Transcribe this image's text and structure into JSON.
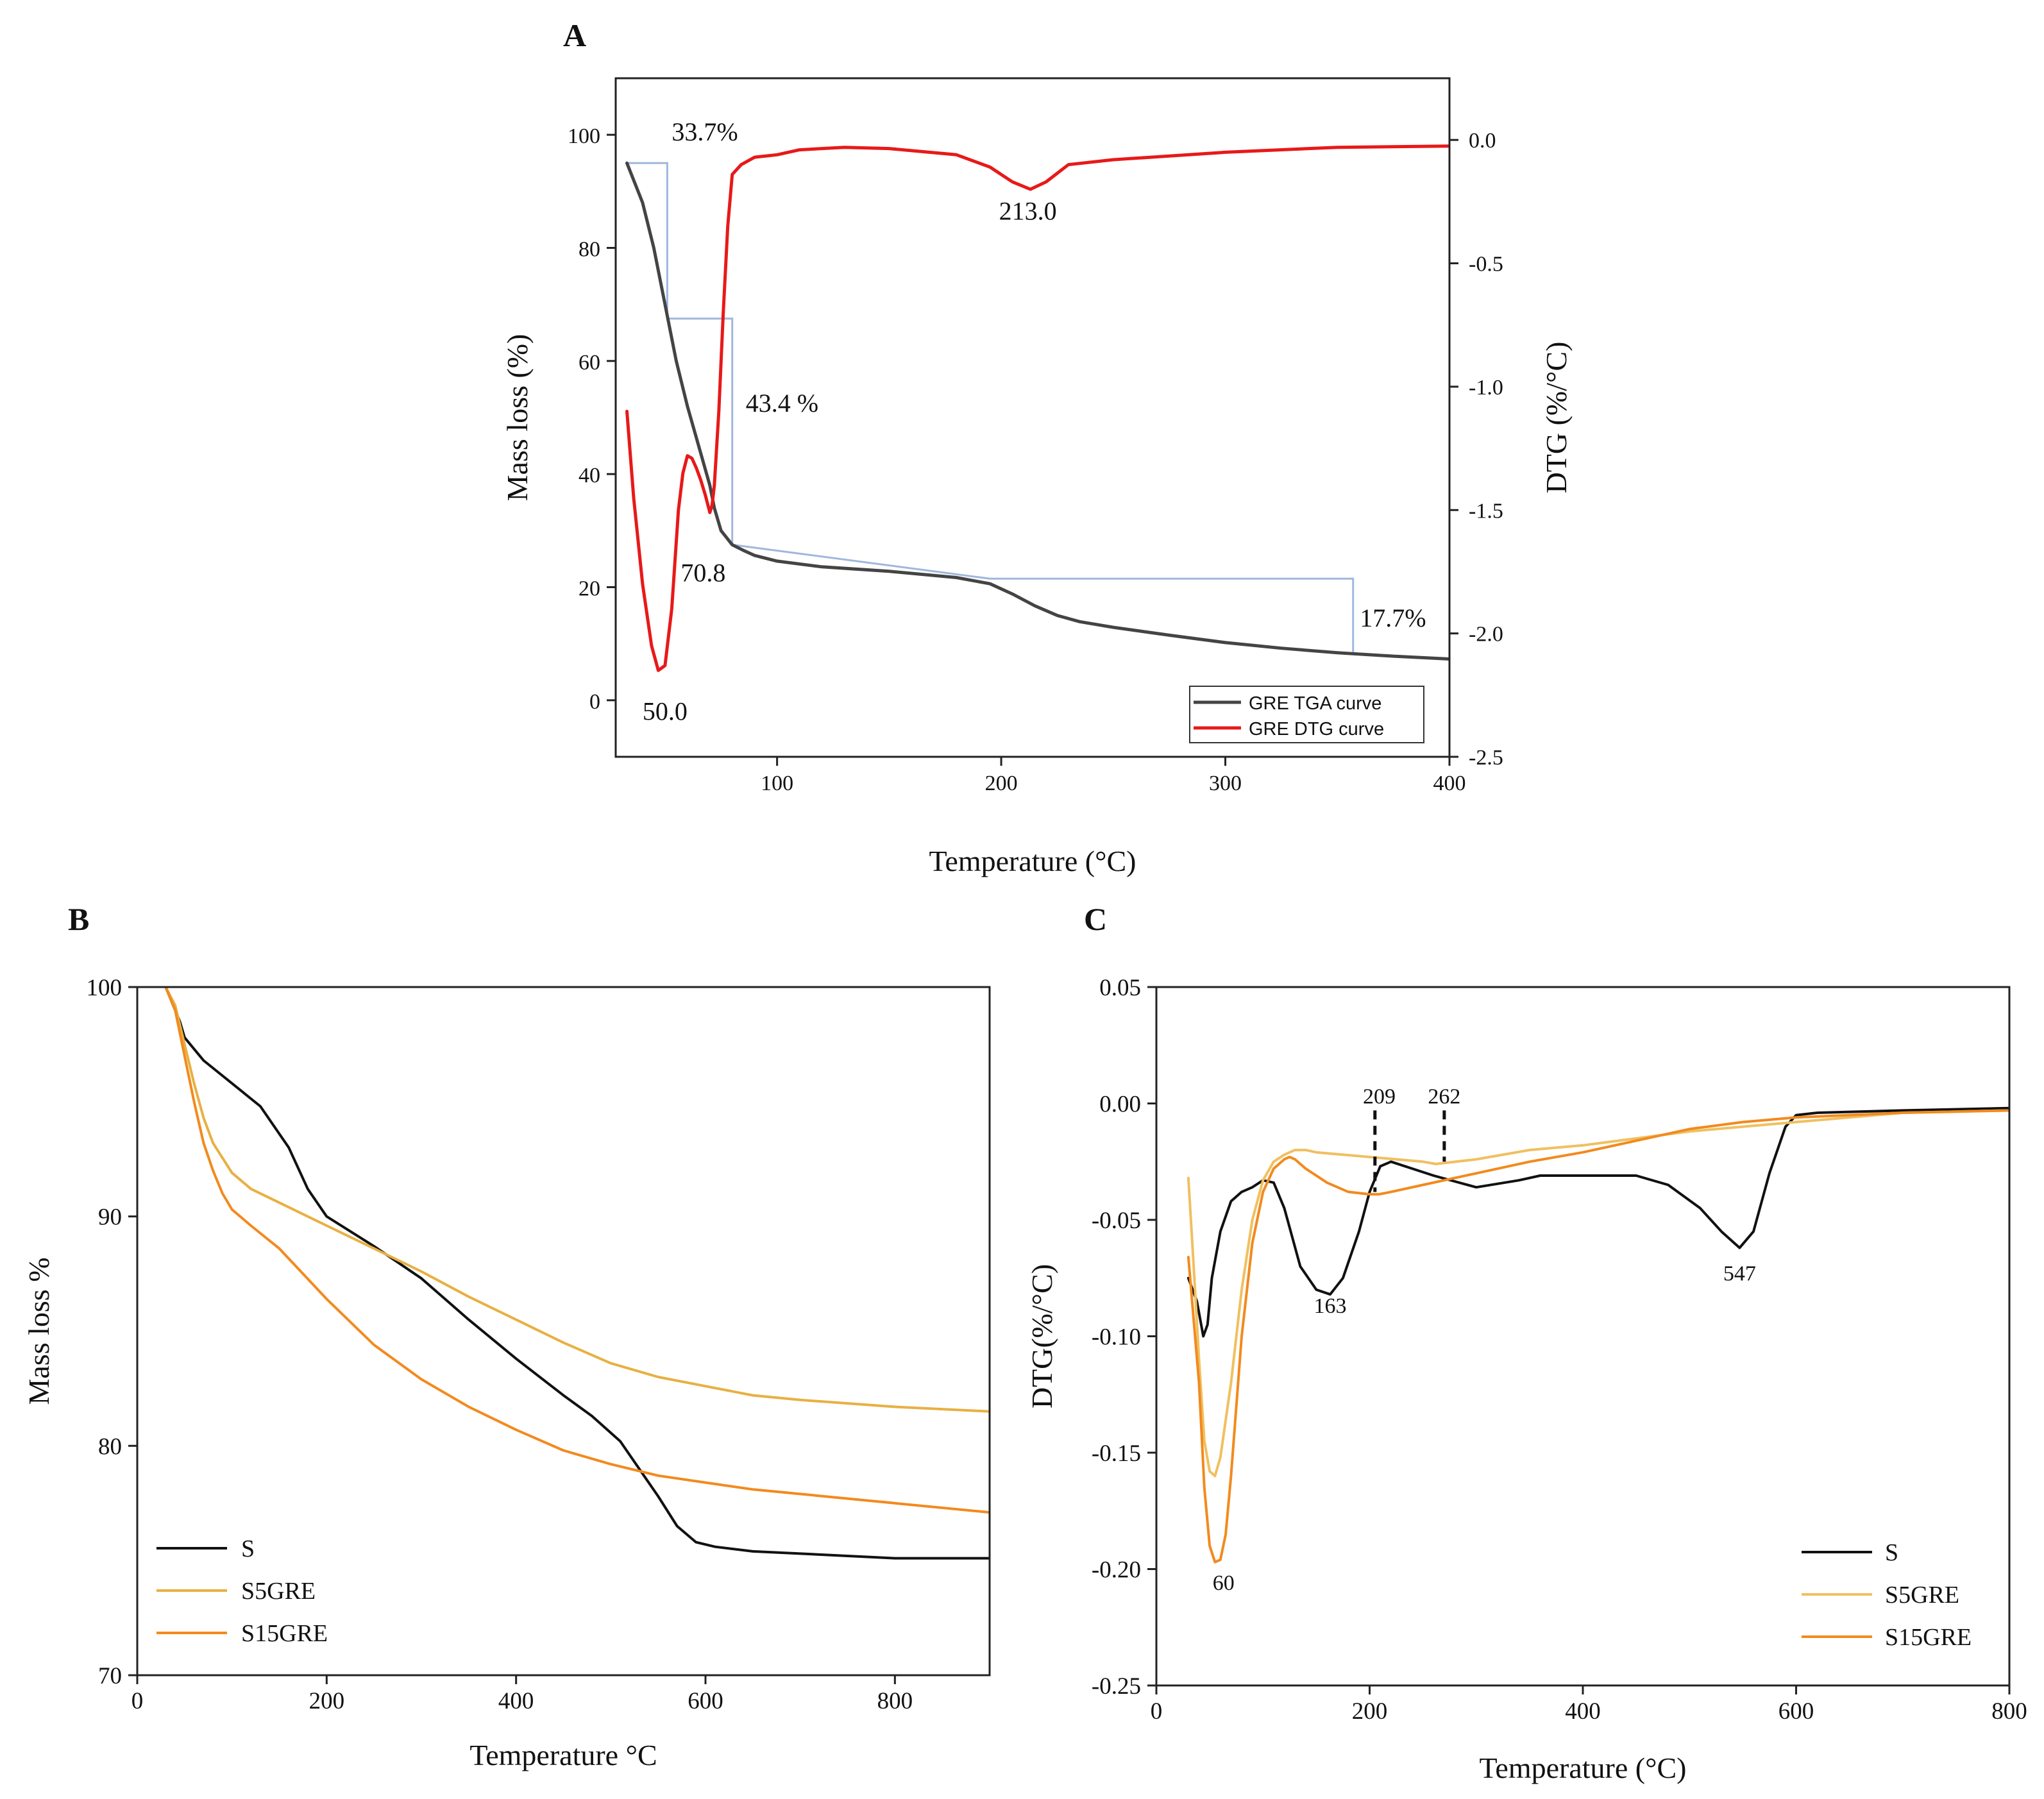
{
  "chart_data": [
    {
      "panel": "A",
      "type": "line",
      "xlabel": "Temperature (°C)",
      "ylabel": "Mass loss (%)",
      "y2label": "DTG (%/°C)",
      "xlim": [
        28,
        400
      ],
      "ylim": [
        -10,
        110
      ],
      "y2lim": [
        -2.5,
        0.25
      ],
      "xticks": [
        100,
        200,
        300,
        400
      ],
      "yticks": [
        0,
        20,
        40,
        60,
        80,
        100
      ],
      "y2ticks": [
        0.0,
        -0.5,
        -1.0,
        -1.5,
        -2.0,
        -2.5
      ],
      "y2ticklabels": [
        "0.0",
        "-0.5",
        "-1.0",
        "-1.5",
        "-2.0",
        "-2.5"
      ],
      "legend": "bottom-right",
      "series": [
        {
          "name": "GRE TGA curve",
          "axis": "left",
          "color": "#444444",
          "x": [
            33,
            40,
            45,
            50,
            55,
            60,
            65,
            70,
            72,
            75,
            78,
            80,
            85,
            90,
            100,
            120,
            150,
            180,
            195,
            205,
            215,
            225,
            235,
            250,
            275,
            300,
            325,
            350,
            375,
            400
          ],
          "y": [
            95,
            88,
            80,
            70,
            60,
            52,
            45,
            38,
            34,
            30,
            28.5,
            27.5,
            26.5,
            25.6,
            24.6,
            23.6,
            22.8,
            21.7,
            20.6,
            18.8,
            16.7,
            15.0,
            13.9,
            12.9,
            11.5,
            10.2,
            9.2,
            8.4,
            7.8,
            7.3
          ]
        },
        {
          "name": "GRE DTG curve",
          "axis": "right",
          "color": "#e81919",
          "x": [
            33,
            36,
            40,
            44,
            47,
            50,
            53,
            56,
            58,
            60,
            62,
            64,
            66,
            68,
            70,
            71,
            72,
            74,
            76,
            78,
            80,
            82,
            84,
            86,
            90,
            100,
            110,
            130,
            150,
            180,
            195,
            205,
            213,
            220,
            230,
            250,
            300,
            350,
            400
          ],
          "y": [
            -1.1,
            -1.45,
            -1.8,
            -2.05,
            -2.15,
            -2.13,
            -1.9,
            -1.5,
            -1.35,
            -1.28,
            -1.29,
            -1.33,
            -1.38,
            -1.44,
            -1.51,
            -1.48,
            -1.4,
            -1.1,
            -0.7,
            -0.35,
            -0.14,
            -0.12,
            -0.1,
            -0.09,
            -0.07,
            -0.06,
            -0.04,
            -0.03,
            -0.035,
            -0.06,
            -0.11,
            -0.17,
            -0.2,
            -0.17,
            -0.1,
            -0.08,
            -0.05,
            -0.03,
            -0.025
          ]
        }
      ],
      "guides": [
        {
          "x": [
            33,
            51,
            51,
            80,
            80,
            195,
            357,
            357
          ],
          "y": [
            95,
            95,
            67.5,
            67.5,
            27.5,
            21.5,
            21.5,
            8.5
          ]
        }
      ],
      "annotations": [
        {
          "text": "33.7%",
          "x": 53,
          "y": 99
        },
        {
          "text": "43.4 %",
          "x": 86,
          "y": 51
        },
        {
          "text": "213.0",
          "x": 199,
          "y": 85
        },
        {
          "text": "70.8",
          "x": 57,
          "y": 21
        },
        {
          "text": "50.0",
          "x": 40,
          "y": -3.5
        },
        {
          "text": "17.7%",
          "x": 360,
          "y": 13
        }
      ]
    },
    {
      "panel": "B",
      "type": "line",
      "xlabel": "Temperature °C",
      "ylabel": "Mass loss %",
      "xlim": [
        0,
        900
      ],
      "ylim": [
        70,
        100
      ],
      "xticks": [
        0,
        200,
        400,
        600,
        800
      ],
      "yticks": [
        70,
        80,
        90,
        100
      ],
      "legend": "bottom-left",
      "series": [
        {
          "name": "S",
          "color": "#111111",
          "x": [
            30,
            45,
            50,
            70,
            100,
            130,
            160,
            180,
            200,
            250,
            300,
            350,
            400,
            450,
            480,
            510,
            530,
            550,
            570,
            590,
            610,
            650,
            700,
            800,
            900
          ],
          "y": [
            100,
            98.5,
            97.8,
            96.8,
            95.8,
            94.8,
            93.0,
            91.2,
            90.0,
            88.7,
            87.3,
            85.5,
            83.8,
            82.2,
            81.3,
            80.2,
            79.0,
            77.8,
            76.5,
            75.8,
            75.6,
            75.4,
            75.3,
            75.1,
            75.1
          ]
        },
        {
          "name": "S5GRE",
          "color": "#e8b042",
          "x": [
            30,
            40,
            50,
            60,
            70,
            80,
            100,
            120,
            150,
            200,
            250,
            300,
            350,
            400,
            450,
            500,
            550,
            600,
            650,
            700,
            800,
            900
          ],
          "y": [
            100,
            99.2,
            97.5,
            95.8,
            94.3,
            93.2,
            91.9,
            91.2,
            90.6,
            89.6,
            88.6,
            87.6,
            86.5,
            85.5,
            84.5,
            83.6,
            83.0,
            82.6,
            82.2,
            82.0,
            81.7,
            81.5
          ]
        },
        {
          "name": "S15GRE",
          "color": "#f28a1e",
          "x": [
            30,
            40,
            50,
            60,
            70,
            80,
            90,
            100,
            120,
            150,
            200,
            250,
            300,
            350,
            400,
            450,
            500,
            550,
            600,
            650,
            700,
            800,
            900
          ],
          "y": [
            100,
            99.0,
            97.0,
            95.0,
            93.2,
            92.0,
            91.0,
            90.3,
            89.6,
            88.6,
            86.4,
            84.4,
            82.9,
            81.7,
            80.7,
            79.8,
            79.2,
            78.7,
            78.4,
            78.1,
            77.9,
            77.5,
            77.1
          ]
        }
      ]
    },
    {
      "panel": "C",
      "type": "line",
      "xlabel": "Temperature (°C)",
      "ylabel": "DTG(%/°C)",
      "xlim": [
        0,
        800
      ],
      "ylim": [
        -0.25,
        0.05
      ],
      "xticks": [
        0,
        200,
        400,
        600,
        800
      ],
      "yticks": [
        0.05,
        0.0,
        -0.05,
        -0.1,
        -0.15,
        -0.2,
        -0.25
      ],
      "yticklabels": [
        "0.05",
        "0.00",
        "-0.05",
        "-0.10",
        "-0.15",
        "-0.20",
        "-0.25"
      ],
      "legend": "bottom-right",
      "series": [
        {
          "name": "S",
          "color": "#111111",
          "x": [
            30,
            38,
            44,
            48,
            52,
            60,
            70,
            80,
            90,
            100,
            110,
            120,
            135,
            150,
            163,
            175,
            190,
            200,
            210,
            220,
            240,
            260,
            300,
            340,
            360,
            400,
            450,
            480,
            510,
            530,
            547,
            560,
            575,
            590,
            600,
            620,
            700,
            800
          ],
          "y": [
            -0.075,
            -0.085,
            -0.1,
            -0.095,
            -0.075,
            -0.055,
            -0.042,
            -0.038,
            -0.036,
            -0.033,
            -0.034,
            -0.045,
            -0.07,
            -0.08,
            -0.082,
            -0.075,
            -0.055,
            -0.038,
            -0.027,
            -0.025,
            -0.028,
            -0.031,
            -0.036,
            -0.033,
            -0.031,
            -0.031,
            -0.031,
            -0.035,
            -0.045,
            -0.055,
            -0.062,
            -0.055,
            -0.03,
            -0.01,
            -0.005,
            -0.004,
            -0.003,
            -0.002
          ]
        },
        {
          "name": "S5GRE",
          "color": "#f0c060",
          "x": [
            30,
            35,
            40,
            45,
            50,
            55,
            60,
            70,
            80,
            90,
            100,
            110,
            120,
            130,
            140,
            150,
            200,
            250,
            262,
            300,
            350,
            400,
            450,
            500,
            550,
            600,
            650,
            700,
            800
          ],
          "y": [
            -0.032,
            -0.07,
            -0.11,
            -0.145,
            -0.158,
            -0.16,
            -0.152,
            -0.12,
            -0.08,
            -0.05,
            -0.033,
            -0.025,
            -0.022,
            -0.02,
            -0.02,
            -0.021,
            -0.023,
            -0.025,
            -0.026,
            -0.024,
            -0.02,
            -0.018,
            -0.015,
            -0.012,
            -0.01,
            -0.008,
            -0.006,
            -0.004,
            -0.003
          ]
        },
        {
          "name": "S15GRE",
          "color": "#f28a1e",
          "x": [
            30,
            40,
            45,
            50,
            55,
            60,
            65,
            70,
            80,
            90,
            100,
            110,
            120,
            125,
            130,
            140,
            160,
            180,
            200,
            209,
            220,
            250,
            300,
            350,
            400,
            450,
            500,
            550,
            600,
            700,
            800
          ],
          "y": [
            -0.066,
            -0.12,
            -0.165,
            -0.19,
            -0.197,
            -0.196,
            -0.185,
            -0.16,
            -0.1,
            -0.06,
            -0.038,
            -0.028,
            -0.024,
            -0.023,
            -0.024,
            -0.028,
            -0.034,
            -0.038,
            -0.039,
            -0.039,
            -0.038,
            -0.035,
            -0.03,
            -0.025,
            -0.021,
            -0.016,
            -0.011,
            -0.008,
            -0.006,
            -0.004,
            -0.003
          ]
        }
      ],
      "annotations": [
        {
          "text": "209",
          "x": 209,
          "y": 0.0
        },
        {
          "text": "262",
          "x": 270,
          "y": 0.0
        },
        {
          "text": "163",
          "x": 163,
          "y": -0.09
        },
        {
          "text": "547",
          "x": 547,
          "y": -0.076
        },
        {
          "text": "60",
          "x": 63,
          "y": -0.209
        }
      ],
      "dashed_markers": [
        {
          "x": 205,
          "y_from": -0.003,
          "y_to": -0.038
        },
        {
          "x": 270,
          "y_from": -0.003,
          "y_to": -0.025
        }
      ]
    }
  ]
}
